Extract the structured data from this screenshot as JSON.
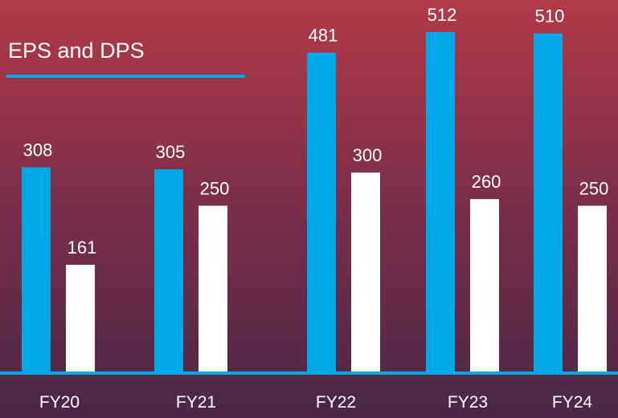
{
  "chart_data": {
    "type": "bar",
    "title": "EPS and DPS",
    "categories": [
      "FY20",
      "FY21",
      "FY22",
      "FY23",
      "FY24"
    ],
    "series": [
      {
        "color": "#00a8e8",
        "values": [
          308,
          305,
          481,
          512,
          510
        ]
      },
      {
        "color": "#ffffff",
        "values": [
          161,
          250,
          300,
          260,
          250
        ]
      }
    ]
  }
}
